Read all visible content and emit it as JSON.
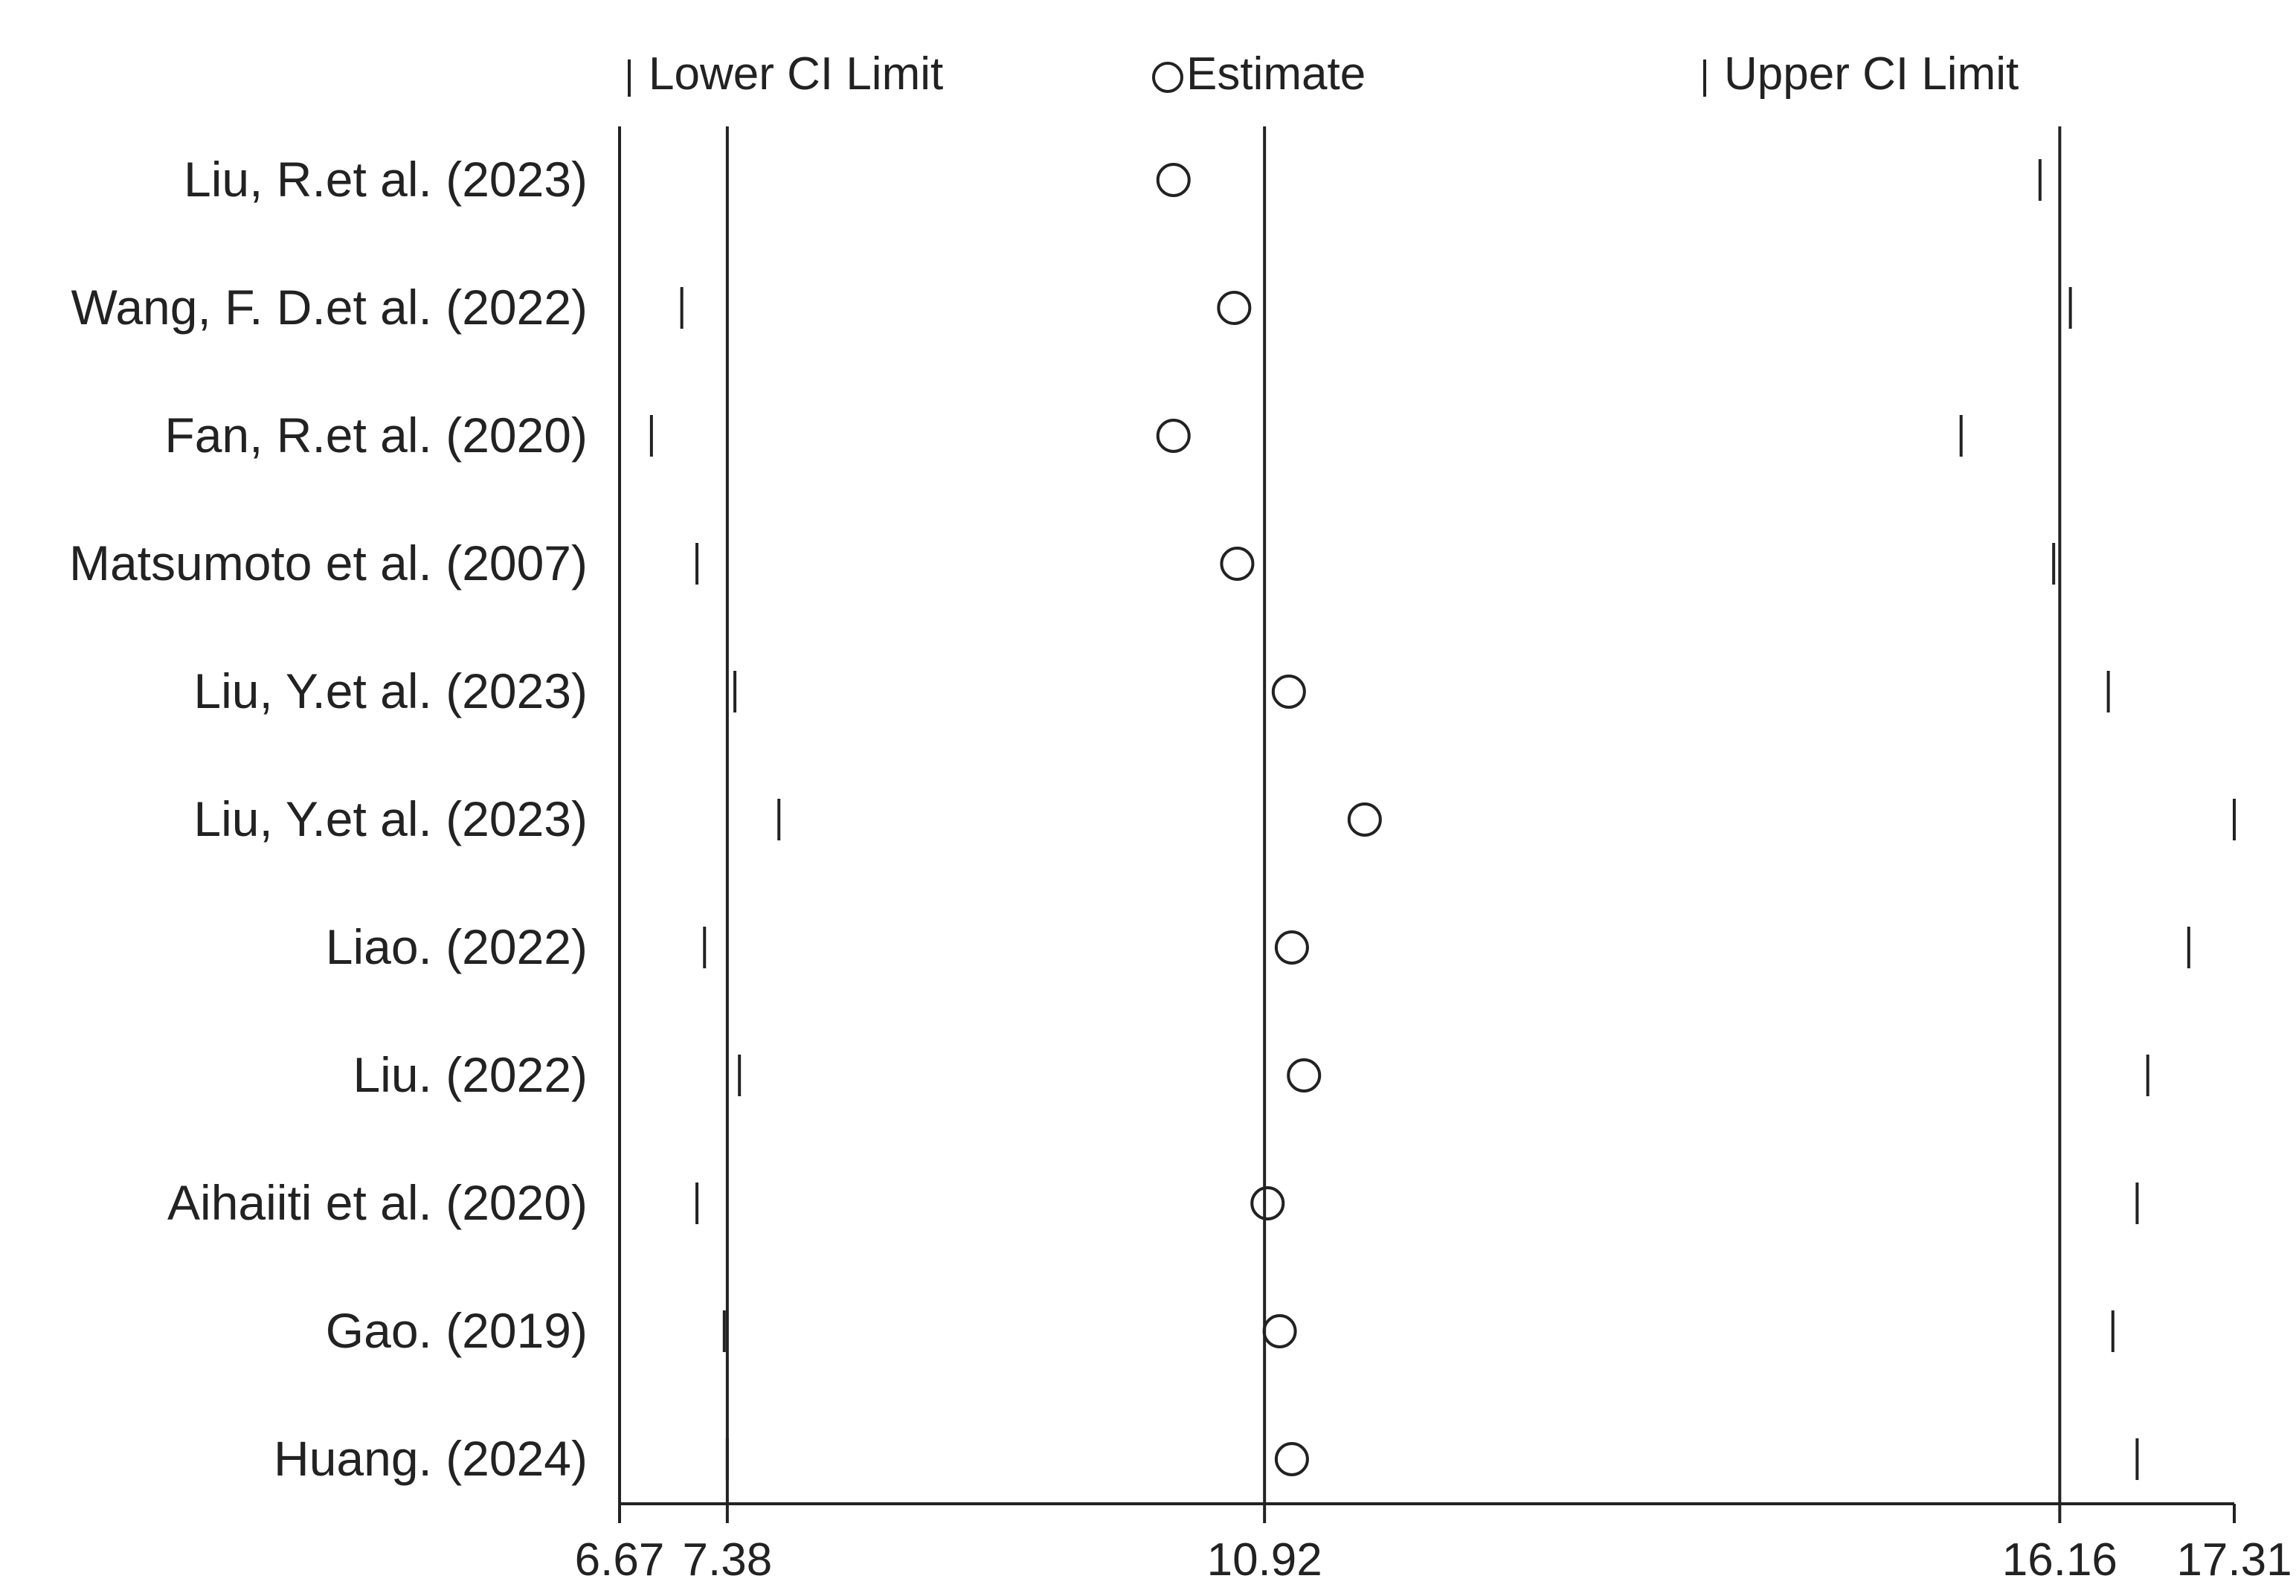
{
  "chart_data": {
    "type": "scatter",
    "legend": {
      "position": "top",
      "items": [
        {
          "symbol": "tick-icon",
          "label": "Lower CI Limit"
        },
        {
          "symbol": "circle-icon",
          "label": "Estimate"
        },
        {
          "symbol": "tick-icon",
          "label": "Upper CI Limit"
        }
      ]
    },
    "x_ticks": [
      "6.67",
      "7.38",
      "10.92",
      "16.16",
      "17.31"
    ],
    "x_reference_lines": [
      7.38,
      10.92,
      16.16
    ],
    "xlim": [
      6.67,
      17.31
    ],
    "studies": [
      {
        "label": "Liu, R.et al. (2023)",
        "lower": 6.67,
        "estimate": 10.32,
        "upper": 16.03
      },
      {
        "label": "Wang, F. D.et al. (2022)",
        "lower": 7.08,
        "estimate": 10.72,
        "upper": 16.23
      },
      {
        "label": "Fan, R.et al. (2020)",
        "lower": 6.88,
        "estimate": 10.32,
        "upper": 15.51
      },
      {
        "label": "Matsumoto et al. (2007)",
        "lower": 7.18,
        "estimate": 10.74,
        "upper": 16.12
      },
      {
        "label": "Liu, Y.et al. (2023)",
        "lower": 7.43,
        "estimate": 11.08,
        "upper": 16.48
      },
      {
        "label": "Liu, Y.et al. (2023)",
        "lower": 7.72,
        "estimate": 11.58,
        "upper": 17.31
      },
      {
        "label": "Liao. (2022)",
        "lower": 7.23,
        "estimate": 11.1,
        "upper": 17.01
      },
      {
        "label": "Liu. (2022)",
        "lower": 7.46,
        "estimate": 11.18,
        "upper": 16.74
      },
      {
        "label": "Aihaiiti et al. (2020)",
        "lower": 7.18,
        "estimate": 10.94,
        "upper": 16.67
      },
      {
        "label": "Gao. (2019)",
        "lower": 7.36,
        "estimate": 11.02,
        "upper": 16.51
      },
      {
        "label": "Huang. (2024)",
        "lower": 7.38,
        "estimate": 11.1,
        "upper": 16.67
      }
    ]
  }
}
